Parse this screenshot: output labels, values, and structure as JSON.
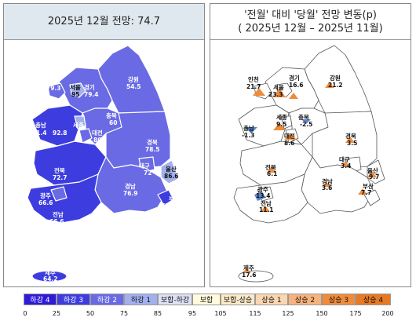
{
  "left_panel": {
    "title": "2025년 12월 전망: 74.7",
    "regions": [
      {
        "name": "인천",
        "value": "79.3"
      },
      {
        "name": "서울",
        "value": "95"
      },
      {
        "name": "경기",
        "value": "79.4"
      },
      {
        "name": "강원",
        "value": "54.5"
      },
      {
        "name": "충남",
        "value": "71.4"
      },
      {
        "name": "세종",
        "value": "92.8"
      },
      {
        "name": "대전",
        "value": "80"
      },
      {
        "name": "충북",
        "value": "60"
      },
      {
        "name": "경북",
        "value": "78.5"
      },
      {
        "name": "대구",
        "value": "72"
      },
      {
        "name": "울산",
        "value": "86.6"
      },
      {
        "name": "전북",
        "value": "72.7"
      },
      {
        "name": "경남",
        "value": "76.9"
      },
      {
        "name": "부산",
        "value": "72.7"
      },
      {
        "name": "광주",
        "value": "66.6"
      },
      {
        "name": "전남",
        "value": "66.6"
      },
      {
        "name": "제주",
        "value": "64.2"
      }
    ]
  },
  "right_panel": {
    "title_line1": "'전월' 대비 '당월' 전망 변동(p)",
    "title_line2": "( 2025년 12월 –   2025년 11월)",
    "regions": [
      {
        "name": "인천",
        "value": "21.7"
      },
      {
        "name": "서울",
        "value": "23.3"
      },
      {
        "name": "경기",
        "value": "16.6"
      },
      {
        "name": "강원",
        "value": "21.2"
      },
      {
        "name": "충남",
        "value": "-1.3"
      },
      {
        "name": "세종",
        "value": "9.5"
      },
      {
        "name": "대전",
        "value": "8.6"
      },
      {
        "name": "충북",
        "value": "-2.5"
      },
      {
        "name": "경북",
        "value": "3.5"
      },
      {
        "name": "대구",
        "value": "3.4"
      },
      {
        "name": "울산",
        "value": "9.7"
      },
      {
        "name": "전북",
        "value": "6.1"
      },
      {
        "name": "광주",
        "value": "13.4"
      },
      {
        "name": "경남",
        "value": "3.6"
      },
      {
        "name": "부산",
        "value": "7.7"
      },
      {
        "name": "전남",
        "value": "11.1"
      },
      {
        "name": "제주",
        "value": "17.6"
      }
    ]
  },
  "legend": {
    "items": [
      {
        "label": "하강 4",
        "color": "#2f1ad6"
      },
      {
        "label": "하강 3",
        "color": "#3d3ddf"
      },
      {
        "label": "하강 2",
        "color": "#6a6ae4"
      },
      {
        "label": "하강 1",
        "color": "#a3b0ee"
      },
      {
        "label": "보합-하강",
        "color": "#dde2f6"
      },
      {
        "label": "보합",
        "color": "#fffbdc"
      },
      {
        "label": "보합-상승",
        "color": "#fde9c8"
      },
      {
        "label": "상승 1",
        "color": "#fbd6b0"
      },
      {
        "label": "상승 2",
        "color": "#f7b37d"
      },
      {
        "label": "상승 3",
        "color": "#ef8c3c"
      },
      {
        "label": "상승 4",
        "color": "#e77a22"
      }
    ],
    "ticks": [
      "0",
      "25",
      "50",
      "75",
      "85",
      "95",
      "105",
      "115",
      "125",
      "150",
      "175",
      "200"
    ]
  },
  "colors": {
    "down_region": "#6a6ae4",
    "down_region_light": "#a3b0ee",
    "down_region_dark": "#3d3ddf",
    "up_triangle": "#ef8c3c",
    "down_triangle": "#5a86c8"
  }
}
